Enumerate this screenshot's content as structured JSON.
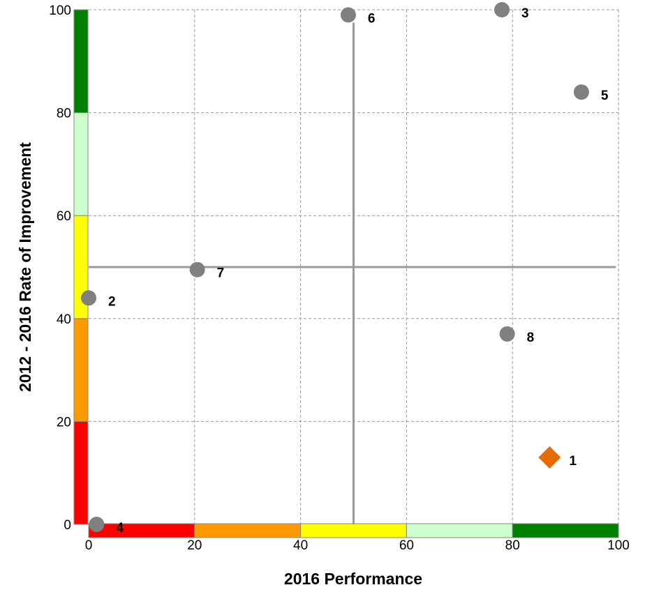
{
  "chart_data": {
    "type": "scatter",
    "title": "",
    "xlabel": "2016 Performance",
    "ylabel": "2012 - 2016 Rate of Improvement",
    "xlim": [
      0,
      100
    ],
    "ylim": [
      0,
      100
    ],
    "x_ticks": [
      "0",
      "20",
      "40",
      "60",
      "80",
      "100"
    ],
    "y_ticks": [
      "0",
      "20",
      "40",
      "60",
      "80",
      "100"
    ],
    "grid": true,
    "reference_lines": {
      "x": 50,
      "y": 50
    },
    "color_bands": [
      {
        "from": 0,
        "to": 20,
        "color": "#ff0000"
      },
      {
        "from": 20,
        "to": 40,
        "color": "#ff9900"
      },
      {
        "from": 40,
        "to": 60,
        "color": "#ffff00"
      },
      {
        "from": 60,
        "to": 80,
        "color": "#ccffcc"
      },
      {
        "from": 80,
        "to": 100,
        "color": "#008000"
      }
    ],
    "points": [
      {
        "label": "1",
        "x": 87,
        "y": 13,
        "marker": "diamond",
        "color": "#e36c09"
      },
      {
        "label": "2",
        "x": 0,
        "y": 44,
        "marker": "circle",
        "color": "#808080"
      },
      {
        "label": "3",
        "x": 78,
        "y": 100,
        "marker": "circle",
        "color": "#808080"
      },
      {
        "label": "4",
        "x": 1.5,
        "y": 0,
        "marker": "circle",
        "color": "#808080"
      },
      {
        "label": "5",
        "x": 93,
        "y": 84,
        "marker": "circle",
        "color": "#808080"
      },
      {
        "label": "6",
        "x": 49,
        "y": 99,
        "marker": "circle",
        "color": "#808080"
      },
      {
        "label": "7",
        "x": 20.5,
        "y": 49.5,
        "marker": "circle",
        "color": "#808080"
      },
      {
        "label": "8",
        "x": 79,
        "y": 37,
        "marker": "circle",
        "color": "#808080"
      }
    ]
  }
}
